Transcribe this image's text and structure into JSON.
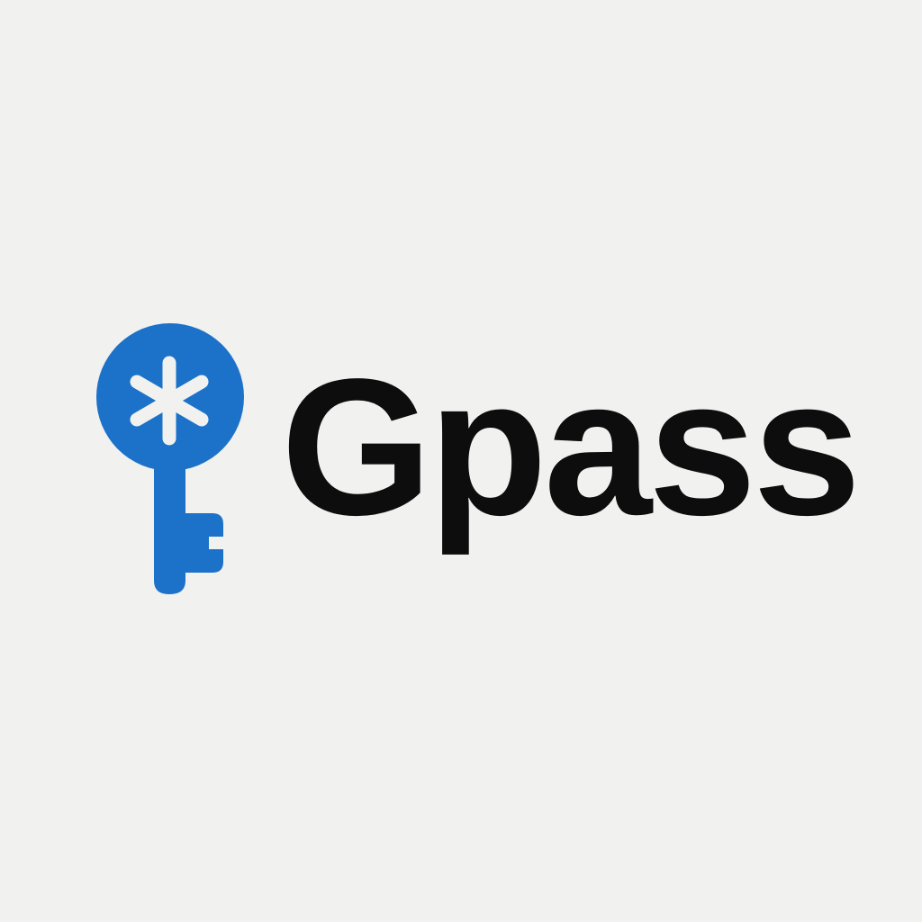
{
  "logo": {
    "wordmark": "Gpass",
    "icon": "key-icon",
    "accent_color": "#1c72c8",
    "text_color": "#0d0d0d",
    "background_color": "#f1f1f0"
  }
}
